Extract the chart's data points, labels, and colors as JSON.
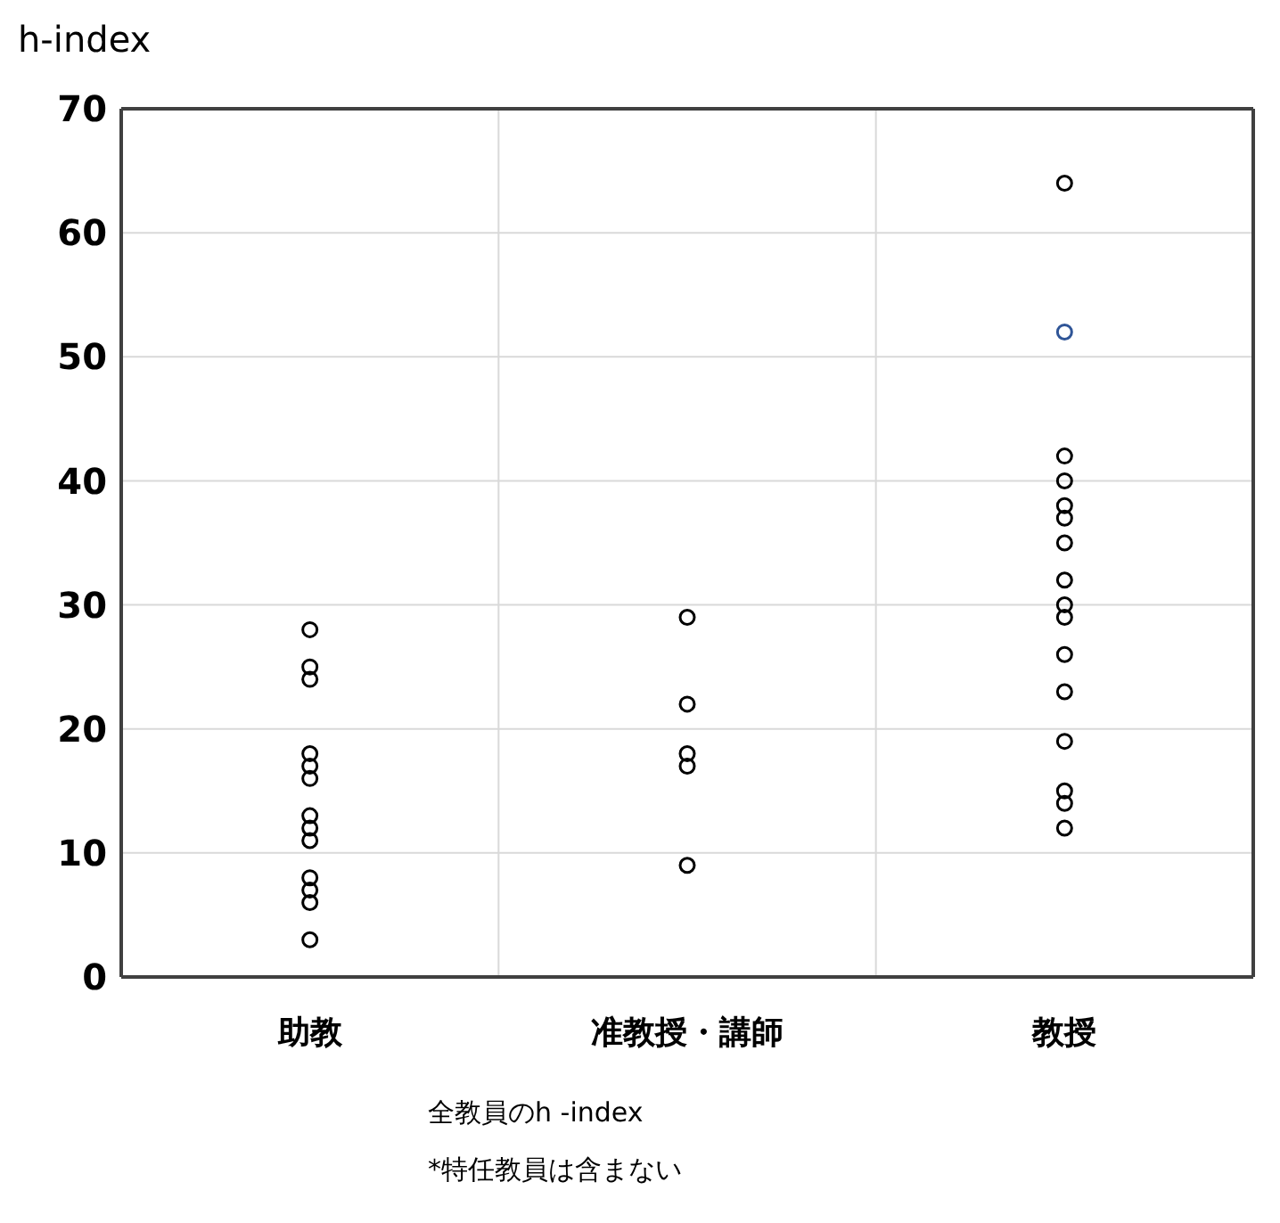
{
  "chart_data": {
    "type": "scatter",
    "ylabel": "h-index",
    "categories": [
      "助教",
      "准教授・講師",
      "教授"
    ],
    "series": [
      {
        "x": [
          "助教",
          "助教",
          "助教",
          "助教",
          "助教",
          "助教",
          "助教",
          "助教",
          "助教",
          "助教",
          "助教",
          "助教",
          "助教",
          "准教授・講師",
          "准教授・講師",
          "准教授・講師",
          "准教授・講師",
          "准教授・講師",
          "教授",
          "教授",
          "教授",
          "教授",
          "教授",
          "教授",
          "教授",
          "教授",
          "教授",
          "教授",
          "教授",
          "教授",
          "教授",
          "教授",
          "教授",
          "教授"
        ],
        "values": [
          28,
          25,
          24,
          18,
          17,
          16,
          13,
          12,
          11,
          8,
          7,
          6,
          3,
          29,
          22,
          18,
          17,
          9,
          64,
          52,
          42,
          40,
          38,
          37,
          35,
          32,
          30,
          29,
          26,
          23,
          19,
          15,
          14,
          12
        ],
        "colors": [
          "#000000",
          "#000000",
          "#000000",
          "#000000",
          "#000000",
          "#000000",
          "#000000",
          "#000000",
          "#000000",
          "#000000",
          "#000000",
          "#000000",
          "#000000",
          "#000000",
          "#000000",
          "#000000",
          "#000000",
          "#000000",
          "#000000",
          "#2f5597",
          "#000000",
          "#000000",
          "#000000",
          "#000000",
          "#000000",
          "#000000",
          "#000000",
          "#000000",
          "#000000",
          "#000000",
          "#000000",
          "#000000",
          "#000000",
          "#000000"
        ]
      }
    ],
    "ylim": [
      0,
      70
    ],
    "yticks": [
      0,
      10,
      20,
      30,
      40,
      50,
      60,
      70
    ],
    "grid": true,
    "marker": "circle",
    "annotations": [
      "全教員のh -index",
      "*特任教員は含まない"
    ]
  }
}
